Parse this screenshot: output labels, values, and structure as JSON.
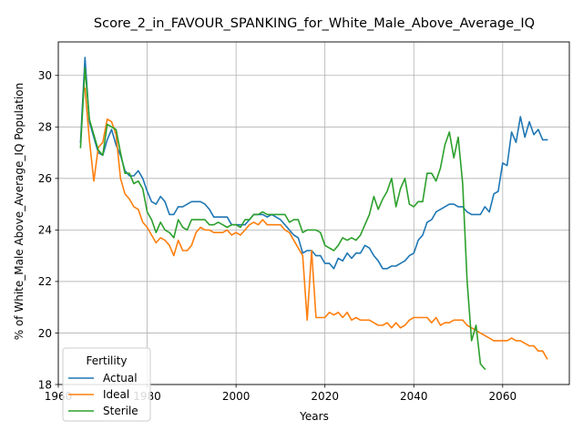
{
  "chart_data": {
    "type": "line",
    "title": "Score_2_in_FAVOUR_SPANKING_for_White_Male_Above_Average_IQ",
    "xlabel": "Years",
    "ylabel": "% of White_Male Above_Average_IQ Population",
    "xlim": [
      1960,
      2075
    ],
    "ylim": [
      18,
      31.3
    ],
    "xticks": [
      1960,
      1980,
      2000,
      2020,
      2040,
      2060
    ],
    "yticks": [
      18,
      20,
      22,
      24,
      26,
      28,
      30
    ],
    "xtick_labels": [
      "1960",
      "1980",
      "2000",
      "2020",
      "2040",
      "2060"
    ],
    "ytick_labels": [
      "18",
      "20",
      "22",
      "24",
      "26",
      "28",
      "30"
    ],
    "grid": true,
    "legend": {
      "title": "Fertility",
      "position": "lower-left"
    },
    "series": [
      {
        "name": "Actual",
        "color": "#1f77b4",
        "points": [
          [
            1965,
            27.4
          ],
          [
            1966,
            30.7
          ],
          [
            1967,
            28.2
          ],
          [
            1968,
            27.6
          ],
          [
            1969,
            27.0
          ],
          [
            1970,
            26.9
          ],
          [
            1971,
            27.5
          ],
          [
            1972,
            27.9
          ],
          [
            1973,
            27.3
          ],
          [
            1974,
            26.9
          ],
          [
            1975,
            26.3
          ],
          [
            1976,
            26.1
          ],
          [
            1977,
            26.1
          ],
          [
            1978,
            26.3
          ],
          [
            1979,
            26.0
          ],
          [
            1980,
            25.5
          ],
          [
            1981,
            25.1
          ],
          [
            1982,
            25.0
          ],
          [
            1983,
            25.3
          ],
          [
            1984,
            25.1
          ],
          [
            1985,
            24.6
          ],
          [
            1986,
            24.6
          ],
          [
            1987,
            24.9
          ],
          [
            1988,
            24.9
          ],
          [
            1989,
            25.0
          ],
          [
            1990,
            25.1
          ],
          [
            1991,
            25.1
          ],
          [
            1992,
            25.1
          ],
          [
            1993,
            25.0
          ],
          [
            1994,
            24.8
          ],
          [
            1995,
            24.5
          ],
          [
            1996,
            24.5
          ],
          [
            1997,
            24.5
          ],
          [
            1998,
            24.5
          ],
          [
            1999,
            24.2
          ],
          [
            2000,
            24.2
          ],
          [
            2001,
            24.2
          ],
          [
            2002,
            24.2
          ],
          [
            2003,
            24.4
          ],
          [
            2004,
            24.6
          ],
          [
            2005,
            24.6
          ],
          [
            2006,
            24.6
          ],
          [
            2007,
            24.5
          ],
          [
            2008,
            24.6
          ],
          [
            2009,
            24.5
          ],
          [
            2010,
            24.4
          ],
          [
            2011,
            24.2
          ],
          [
            2012,
            24.0
          ],
          [
            2013,
            23.8
          ],
          [
            2014,
            23.7
          ],
          [
            2015,
            23.1
          ],
          [
            2016,
            23.2
          ],
          [
            2017,
            23.2
          ],
          [
            2018,
            23.0
          ],
          [
            2019,
            23.0
          ],
          [
            2020,
            22.7
          ],
          [
            2021,
            22.7
          ],
          [
            2022,
            22.5
          ],
          [
            2023,
            22.9
          ],
          [
            2024,
            22.8
          ],
          [
            2025,
            23.1
          ],
          [
            2026,
            22.9
          ],
          [
            2027,
            23.1
          ],
          [
            2028,
            23.1
          ],
          [
            2029,
            23.4
          ],
          [
            2030,
            23.3
          ],
          [
            2031,
            23.0
          ],
          [
            2032,
            22.8
          ],
          [
            2033,
            22.5
          ],
          [
            2034,
            22.5
          ],
          [
            2035,
            22.6
          ],
          [
            2036,
            22.6
          ],
          [
            2037,
            22.7
          ],
          [
            2038,
            22.8
          ],
          [
            2039,
            23.0
          ],
          [
            2040,
            23.1
          ],
          [
            2041,
            23.6
          ],
          [
            2042,
            23.8
          ],
          [
            2043,
            24.3
          ],
          [
            2044,
            24.4
          ],
          [
            2045,
            24.7
          ],
          [
            2046,
            24.8
          ],
          [
            2047,
            24.9
          ],
          [
            2048,
            25.0
          ],
          [
            2049,
            25.0
          ],
          [
            2050,
            24.9
          ],
          [
            2051,
            24.9
          ],
          [
            2052,
            24.7
          ],
          [
            2053,
            24.6
          ],
          [
            2054,
            24.6
          ],
          [
            2055,
            24.6
          ],
          [
            2056,
            24.9
          ],
          [
            2057,
            24.7
          ],
          [
            2058,
            25.4
          ],
          [
            2059,
            25.5
          ],
          [
            2060,
            26.6
          ],
          [
            2061,
            26.5
          ],
          [
            2062,
            27.8
          ],
          [
            2063,
            27.4
          ],
          [
            2064,
            28.4
          ],
          [
            2065,
            27.6
          ],
          [
            2066,
            28.2
          ],
          [
            2067,
            27.7
          ],
          [
            2068,
            27.9
          ],
          [
            2069,
            27.5
          ],
          [
            2070,
            27.5
          ]
        ]
      },
      {
        "name": "Ideal",
        "color": "#ff7f0e",
        "points": [
          [
            1966,
            29.5
          ],
          [
            1967,
            27.5
          ],
          [
            1968,
            25.9
          ],
          [
            1969,
            27.2
          ],
          [
            1970,
            27.4
          ],
          [
            1971,
            28.3
          ],
          [
            1972,
            28.2
          ],
          [
            1973,
            27.7
          ],
          [
            1974,
            26.0
          ],
          [
            1975,
            25.4
          ],
          [
            1976,
            25.2
          ],
          [
            1977,
            24.9
          ],
          [
            1978,
            24.8
          ],
          [
            1979,
            24.3
          ],
          [
            1980,
            24.1
          ],
          [
            1981,
            23.8
          ],
          [
            1982,
            23.5
          ],
          [
            1983,
            23.7
          ],
          [
            1984,
            23.6
          ],
          [
            1985,
            23.4
          ],
          [
            1986,
            23.0
          ],
          [
            1987,
            23.6
          ],
          [
            1988,
            23.2
          ],
          [
            1989,
            23.2
          ],
          [
            1990,
            23.4
          ],
          [
            1991,
            23.9
          ],
          [
            1992,
            24.1
          ],
          [
            1993,
            24.0
          ],
          [
            1994,
            24.0
          ],
          [
            1995,
            23.9
          ],
          [
            1996,
            23.9
          ],
          [
            1997,
            23.9
          ],
          [
            1998,
            24.0
          ],
          [
            1999,
            23.8
          ],
          [
            2000,
            23.9
          ],
          [
            2001,
            23.8
          ],
          [
            2002,
            24.0
          ],
          [
            2003,
            24.2
          ],
          [
            2004,
            24.3
          ],
          [
            2005,
            24.2
          ],
          [
            2006,
            24.4
          ],
          [
            2007,
            24.2
          ],
          [
            2008,
            24.2
          ],
          [
            2009,
            24.2
          ],
          [
            2010,
            24.2
          ],
          [
            2011,
            24.0
          ],
          [
            2012,
            23.9
          ],
          [
            2013,
            23.6
          ],
          [
            2014,
            23.3
          ],
          [
            2015,
            23.0
          ],
          [
            2016,
            20.5
          ],
          [
            2017,
            23.2
          ],
          [
            2018,
            20.6
          ],
          [
            2019,
            20.6
          ],
          [
            2020,
            20.6
          ],
          [
            2021,
            20.8
          ],
          [
            2022,
            20.7
          ],
          [
            2023,
            20.8
          ],
          [
            2024,
            20.6
          ],
          [
            2025,
            20.8
          ],
          [
            2026,
            20.5
          ],
          [
            2027,
            20.6
          ],
          [
            2028,
            20.5
          ],
          [
            2029,
            20.5
          ],
          [
            2030,
            20.5
          ],
          [
            2031,
            20.4
          ],
          [
            2032,
            20.3
          ],
          [
            2033,
            20.3
          ],
          [
            2034,
            20.4
          ],
          [
            2035,
            20.2
          ],
          [
            2036,
            20.4
          ],
          [
            2037,
            20.2
          ],
          [
            2038,
            20.3
          ],
          [
            2039,
            20.5
          ],
          [
            2040,
            20.6
          ],
          [
            2041,
            20.6
          ],
          [
            2042,
            20.6
          ],
          [
            2043,
            20.6
          ],
          [
            2044,
            20.4
          ],
          [
            2045,
            20.6
          ],
          [
            2046,
            20.3
          ],
          [
            2047,
            20.4
          ],
          [
            2048,
            20.4
          ],
          [
            2049,
            20.5
          ],
          [
            2050,
            20.5
          ],
          [
            2051,
            20.5
          ],
          [
            2052,
            20.3
          ],
          [
            2053,
            20.2
          ],
          [
            2054,
            20.1
          ],
          [
            2055,
            20.0
          ],
          [
            2056,
            19.9
          ],
          [
            2057,
            19.8
          ],
          [
            2058,
            19.7
          ],
          [
            2059,
            19.7
          ],
          [
            2060,
            19.7
          ],
          [
            2061,
            19.7
          ],
          [
            2062,
            19.8
          ],
          [
            2063,
            19.7
          ],
          [
            2064,
            19.7
          ],
          [
            2065,
            19.6
          ],
          [
            2066,
            19.5
          ],
          [
            2067,
            19.5
          ],
          [
            2068,
            19.3
          ],
          [
            2069,
            19.3
          ],
          [
            2070,
            19.0
          ]
        ]
      },
      {
        "name": "Sterile",
        "color": "#2ca02c",
        "points": [
          [
            1965,
            27.2
          ],
          [
            1966,
            30.3
          ],
          [
            1967,
            28.3
          ],
          [
            1968,
            27.7
          ],
          [
            1969,
            27.1
          ],
          [
            1970,
            26.9
          ],
          [
            1971,
            28.1
          ],
          [
            1972,
            28.0
          ],
          [
            1973,
            27.9
          ],
          [
            1974,
            27.0
          ],
          [
            1975,
            26.2
          ],
          [
            1976,
            26.2
          ],
          [
            1977,
            25.8
          ],
          [
            1978,
            25.9
          ],
          [
            1979,
            25.6
          ],
          [
            1980,
            24.7
          ],
          [
            1981,
            24.4
          ],
          [
            1982,
            23.9
          ],
          [
            1983,
            24.3
          ],
          [
            1984,
            24.0
          ],
          [
            1985,
            23.9
          ],
          [
            1986,
            23.7
          ],
          [
            1987,
            24.4
          ],
          [
            1988,
            24.1
          ],
          [
            1989,
            24.0
          ],
          [
            1990,
            24.4
          ],
          [
            1991,
            24.4
          ],
          [
            1992,
            24.4
          ],
          [
            1993,
            24.4
          ],
          [
            1994,
            24.2
          ],
          [
            1995,
            24.2
          ],
          [
            1996,
            24.3
          ],
          [
            1997,
            24.2
          ],
          [
            1998,
            24.1
          ],
          [
            1999,
            24.2
          ],
          [
            2000,
            24.2
          ],
          [
            2001,
            24.1
          ],
          [
            2002,
            24.4
          ],
          [
            2003,
            24.4
          ],
          [
            2004,
            24.6
          ],
          [
            2005,
            24.6
          ],
          [
            2006,
            24.7
          ],
          [
            2007,
            24.6
          ],
          [
            2008,
            24.6
          ],
          [
            2009,
            24.6
          ],
          [
            2010,
            24.6
          ],
          [
            2011,
            24.6
          ],
          [
            2012,
            24.3
          ],
          [
            2013,
            24.4
          ],
          [
            2014,
            24.4
          ],
          [
            2015,
            23.9
          ],
          [
            2016,
            24.0
          ],
          [
            2017,
            24.0
          ],
          [
            2018,
            24.0
          ],
          [
            2019,
            23.9
          ],
          [
            2020,
            23.4
          ],
          [
            2021,
            23.3
          ],
          [
            2022,
            23.2
          ],
          [
            2023,
            23.4
          ],
          [
            2024,
            23.7
          ],
          [
            2025,
            23.6
          ],
          [
            2026,
            23.7
          ],
          [
            2027,
            23.6
          ],
          [
            2028,
            23.8
          ],
          [
            2029,
            24.2
          ],
          [
            2030,
            24.6
          ],
          [
            2031,
            25.3
          ],
          [
            2032,
            24.8
          ],
          [
            2033,
            25.2
          ],
          [
            2034,
            25.5
          ],
          [
            2035,
            26.0
          ],
          [
            2036,
            24.9
          ],
          [
            2037,
            25.6
          ],
          [
            2038,
            26.0
          ],
          [
            2039,
            25.0
          ],
          [
            2040,
            24.9
          ],
          [
            2041,
            25.1
          ],
          [
            2042,
            25.1
          ],
          [
            2043,
            26.2
          ],
          [
            2044,
            26.2
          ],
          [
            2045,
            25.9
          ],
          [
            2046,
            26.4
          ],
          [
            2047,
            27.3
          ],
          [
            2048,
            27.8
          ],
          [
            2049,
            26.8
          ],
          [
            2050,
            27.6
          ],
          [
            2051,
            25.8
          ],
          [
            2052,
            22.0
          ],
          [
            2053,
            19.7
          ],
          [
            2054,
            20.3
          ],
          [
            2055,
            18.8
          ],
          [
            2056,
            18.6
          ]
        ]
      }
    ]
  }
}
